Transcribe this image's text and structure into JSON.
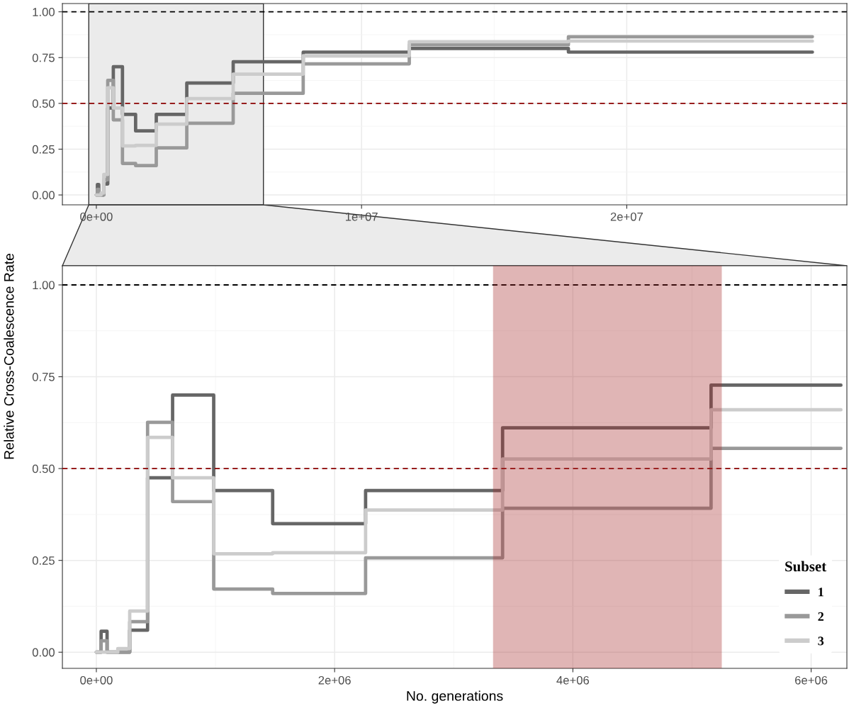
{
  "chart_data": [
    {
      "type": "step",
      "ylabel": "Relative Cross-Coalescence Rate",
      "series": [
        {
          "color": "#666666",
          "x": [
            0,
            40000,
            90000,
            280000,
            430000,
            640000,
            985000,
            1480000,
            2260000,
            3410000,
            5160000,
            7800000,
            11800000,
            17800000,
            27000000
          ],
          "values": [
            0,
            0.057,
            0,
            0.06,
            0.475,
            0.7,
            0.44,
            0.35,
            0.44,
            0.611,
            0.727,
            0.78,
            0.8,
            0.78,
            0.78
          ]
        },
        {
          "color": "#999999",
          "x": [
            0,
            40000,
            90000,
            280000,
            430000,
            640000,
            985000,
            1480000,
            2260000,
            3410000,
            5160000,
            7800000,
            11800000,
            17800000,
            27000000
          ],
          "values": [
            0,
            0.031,
            0,
            0.083,
            0.626,
            0.41,
            0.172,
            0.16,
            0.257,
            0.392,
            0.555,
            0.716,
            0.82,
            0.864,
            0.864
          ]
        },
        {
          "color": "#cccccc",
          "x": [
            0,
            180000,
            280000,
            430000,
            640000,
            985000,
            1480000,
            2260000,
            3410000,
            5160000,
            7800000,
            11800000,
            17800000,
            27000000
          ],
          "values": [
            0,
            0.01,
            0.112,
            0.585,
            0.475,
            0.268,
            0.271,
            0.387,
            0.526,
            0.66,
            0.76,
            0.837,
            0.84,
            0.84
          ]
        }
      ],
      "xlim": [
        -1280000,
        28300000
      ],
      "ylim": [
        -0.054,
        1.045
      ],
      "xticks": [
        {
          "value": 0,
          "label": "0e+00"
        },
        {
          "value": 10000000,
          "label": "1e+07"
        },
        {
          "value": 20000000,
          "label": "2e+07"
        }
      ],
      "yticks": [
        {
          "value": 0,
          "label": "0.00"
        },
        {
          "value": 0.25,
          "label": "0.25"
        },
        {
          "value": 0.5,
          "label": "0.50"
        },
        {
          "value": 0.75,
          "label": "0.75"
        },
        {
          "value": 1,
          "label": "1.00"
        }
      ],
      "ref_lines": [
        {
          "axis": "y",
          "value": 1,
          "color": "#000000",
          "line_style": "dashed"
        },
        {
          "axis": "y",
          "value": 0.5,
          "color": "#8b0000",
          "line_style": "dashed"
        }
      ],
      "bands": [
        {
          "axis": "x",
          "from": -285000,
          "to": 6300000,
          "color": "#ebebeb"
        }
      ],
      "grid": true,
      "legend": false,
      "line_style": "solid",
      "marker": "none"
    },
    {
      "type": "step",
      "xlabel": "No. generations",
      "legend_title": "Subset",
      "series": [
        {
          "name": "1",
          "color": "#666666",
          "x": [
            0,
            40000,
            90000,
            280000,
            430000,
            640000,
            985000,
            1480000,
            2260000,
            3410000,
            5160000,
            6250000
          ],
          "values": [
            0,
            0.057,
            0,
            0.06,
            0.475,
            0.7,
            0.44,
            0.35,
            0.44,
            0.611,
            0.727,
            0.727
          ]
        },
        {
          "name": "2",
          "color": "#999999",
          "x": [
            0,
            40000,
            90000,
            280000,
            430000,
            640000,
            985000,
            1480000,
            2260000,
            3410000,
            5160000,
            6250000
          ],
          "values": [
            0,
            0.031,
            0,
            0.083,
            0.626,
            0.41,
            0.172,
            0.16,
            0.257,
            0.392,
            0.555,
            0.555
          ]
        },
        {
          "name": "3",
          "color": "#cccccc",
          "x": [
            0,
            180000,
            280000,
            430000,
            640000,
            985000,
            1480000,
            2260000,
            3410000,
            5160000,
            6250000
          ],
          "values": [
            0,
            0.01,
            0.112,
            0.585,
            0.475,
            0.268,
            0.271,
            0.387,
            0.526,
            0.66,
            0.66
          ]
        }
      ],
      "xlim": [
        -285000,
        6300000
      ],
      "ylim": [
        -0.044,
        1.052
      ],
      "xticks": [
        {
          "value": 0,
          "label": "0e+00"
        },
        {
          "value": 2000000,
          "label": "2e+06"
        },
        {
          "value": 4000000,
          "label": "4e+06"
        },
        {
          "value": 6000000,
          "label": "6e+06"
        }
      ],
      "yticks": [
        {
          "value": 0,
          "label": "0.00"
        },
        {
          "value": 0.25,
          "label": "0.25"
        },
        {
          "value": 0.5,
          "label": "0.50"
        },
        {
          "value": 0.75,
          "label": "0.75"
        },
        {
          "value": 1,
          "label": "1.00"
        }
      ],
      "ref_lines": [
        {
          "axis": "y",
          "value": 1,
          "color": "#000000",
          "line_style": "dashed"
        },
        {
          "axis": "y",
          "value": 0.5,
          "color": "#8b0000",
          "line_style": "dashed"
        }
      ],
      "bands": [
        {
          "axis": "x",
          "from": 3330000,
          "to": 5250000,
          "color": "#a52a2a"
        }
      ],
      "grid": true,
      "legend": "bottom right",
      "line_style": "solid",
      "marker": "none"
    }
  ]
}
